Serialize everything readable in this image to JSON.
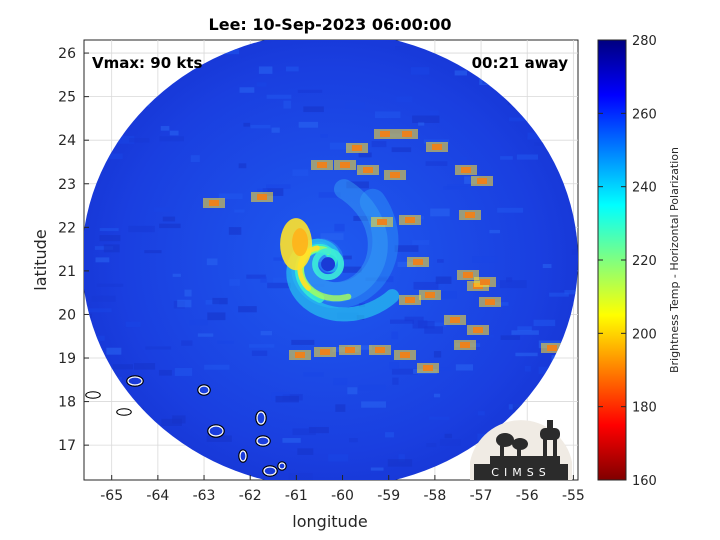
{
  "title": "Lee: 10-Sep-2023 06:00:00",
  "annotations": {
    "vmax": "Vmax: 90 kts",
    "time_away": "00:21 away"
  },
  "logo": {
    "text": "CIMSS"
  },
  "colors": {
    "background": "#1a35d8",
    "core": "#ffd21e",
    "hot": "#d01010",
    "coast": "#ffffff"
  },
  "chart_data": {
    "type": "heatmap",
    "title": "Lee: 10-Sep-2023 06:00:00",
    "xlabel": "longitude",
    "ylabel": "latitude",
    "xlim": [
      -65.6,
      -54.9
    ],
    "ylim": [
      16.2,
      26.3
    ],
    "xticks": [
      "-65",
      "-64",
      "-63",
      "-62",
      "-61",
      "-60",
      "-59",
      "-58",
      "-57",
      "-56",
      "-55"
    ],
    "yticks": [
      "17",
      "18",
      "19",
      "20",
      "21",
      "22",
      "23",
      "24",
      "25",
      "26"
    ],
    "grid": true,
    "colorbar": {
      "label": "Brightness Temp - Horizontal Polarization",
      "range": [
        160,
        280
      ],
      "ticks": [
        "160",
        "180",
        "200",
        "220",
        "240",
        "260",
        "280"
      ],
      "colormap": "jet (reversed)"
    },
    "storm_center": {
      "lon": -60.4,
      "lat": 21.2
    },
    "swath_center": {
      "lon": -60.1,
      "lat": 21.0
    }
  }
}
